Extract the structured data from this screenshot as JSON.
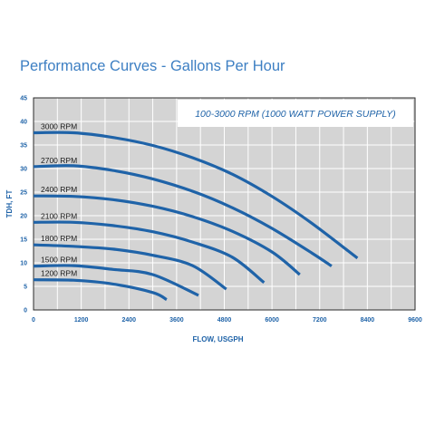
{
  "page_title": "Performance Curves - Gallons Per Hour",
  "colors": {
    "title": "#3d7fc3",
    "plot_bg": "#d4d4d4",
    "grid": "#ffffff",
    "curve": "#1f63a8",
    "axis_text": "#1f63a8",
    "frame": "#2a2a2a"
  },
  "chart_data": {
    "type": "line",
    "title": "",
    "annotation": "100-3000 RPM (1000 WATT POWER SUPPLY)",
    "xlabel": "FLOW, USGPH",
    "ylabel": "TDH, FT",
    "xlim": [
      0,
      9600
    ],
    "ylim": [
      0,
      45
    ],
    "x_ticks": [
      0,
      1200,
      2400,
      3600,
      4800,
      6000,
      7200,
      8400,
      9600
    ],
    "y_ticks": [
      0,
      5,
      10,
      15,
      20,
      25,
      30,
      35,
      40,
      45
    ],
    "grid": true,
    "legend": "inline labels",
    "series": [
      {
        "name": "3000 RPM",
        "x": [
          0,
          1000,
          2000,
          3000,
          4000,
          5000,
          6000,
          7000,
          8150
        ],
        "y": [
          37.6,
          37.6,
          36.6,
          34.9,
          32.3,
          28.8,
          24.1,
          18.4,
          11
        ]
      },
      {
        "name": "2700 RPM",
        "x": [
          0,
          1000,
          2000,
          3000,
          4000,
          5000,
          6000,
          7000,
          7500
        ],
        "y": [
          30.4,
          30.6,
          29.6,
          27.8,
          25.2,
          21.7,
          17.3,
          12.1,
          9.3
        ]
      },
      {
        "name": "2400 RPM",
        "x": [
          0,
          1000,
          2000,
          3000,
          4000,
          5000,
          6000,
          6700
        ],
        "y": [
          24.2,
          24.1,
          23.4,
          22.0,
          19.8,
          16.7,
          12.3,
          7.5
        ]
      },
      {
        "name": "2100 RPM",
        "x": [
          0,
          1000,
          2000,
          3000,
          4000,
          5000,
          5800
        ],
        "y": [
          18.6,
          18.6,
          17.9,
          16.6,
          14.4,
          11.2,
          5.8
        ]
      },
      {
        "name": "1800 RPM",
        "x": [
          0,
          1000,
          2000,
          3000,
          4000,
          4850
        ],
        "y": [
          13.8,
          13.5,
          12.9,
          11.6,
          9.4,
          4.4
        ]
      },
      {
        "name": "1500 RPM",
        "x": [
          0,
          1000,
          2000,
          3000,
          4150
        ],
        "y": [
          9.3,
          9.4,
          8.6,
          7.5,
          3.1
        ]
      },
      {
        "name": "1200 RPM",
        "x": [
          0,
          1000,
          2000,
          3000,
          3350
        ],
        "y": [
          6.4,
          6.3,
          5.5,
          3.7,
          2.2
        ]
      }
    ]
  }
}
